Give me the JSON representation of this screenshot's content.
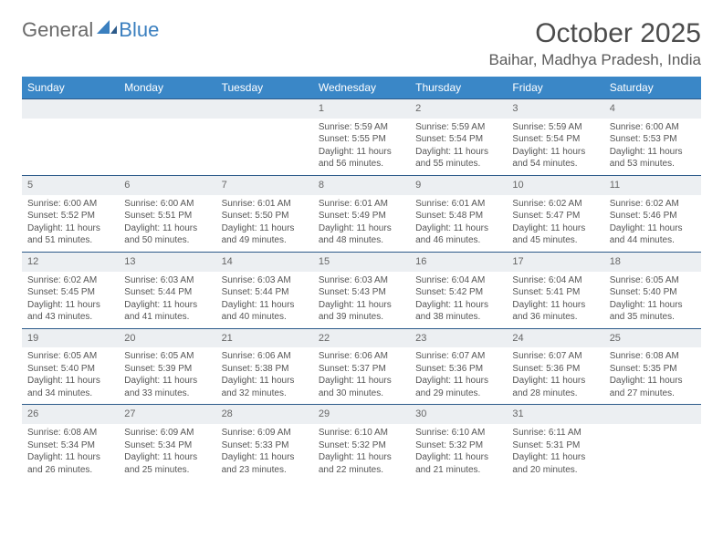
{
  "logo": {
    "general": "General",
    "blue": "Blue"
  },
  "title": "October 2025",
  "location": "Baihar, Madhya Pradesh, India",
  "colors": {
    "header_bg": "#3a87c7",
    "header_text": "#ffffff",
    "daynum_bg": "#eceff2",
    "row_border": "#2c5a8a",
    "text": "#555555",
    "logo_blue": "#3a7fbf"
  },
  "weekdays": [
    "Sunday",
    "Monday",
    "Tuesday",
    "Wednesday",
    "Thursday",
    "Friday",
    "Saturday"
  ],
  "weeks": [
    [
      {
        "n": "",
        "sr": "",
        "ss": "",
        "dl": ""
      },
      {
        "n": "",
        "sr": "",
        "ss": "",
        "dl": ""
      },
      {
        "n": "",
        "sr": "",
        "ss": "",
        "dl": ""
      },
      {
        "n": "1",
        "sr": "Sunrise: 5:59 AM",
        "ss": "Sunset: 5:55 PM",
        "dl": "Daylight: 11 hours and 56 minutes."
      },
      {
        "n": "2",
        "sr": "Sunrise: 5:59 AM",
        "ss": "Sunset: 5:54 PM",
        "dl": "Daylight: 11 hours and 55 minutes."
      },
      {
        "n": "3",
        "sr": "Sunrise: 5:59 AM",
        "ss": "Sunset: 5:54 PM",
        "dl": "Daylight: 11 hours and 54 minutes."
      },
      {
        "n": "4",
        "sr": "Sunrise: 6:00 AM",
        "ss": "Sunset: 5:53 PM",
        "dl": "Daylight: 11 hours and 53 minutes."
      }
    ],
    [
      {
        "n": "5",
        "sr": "Sunrise: 6:00 AM",
        "ss": "Sunset: 5:52 PM",
        "dl": "Daylight: 11 hours and 51 minutes."
      },
      {
        "n": "6",
        "sr": "Sunrise: 6:00 AM",
        "ss": "Sunset: 5:51 PM",
        "dl": "Daylight: 11 hours and 50 minutes."
      },
      {
        "n": "7",
        "sr": "Sunrise: 6:01 AM",
        "ss": "Sunset: 5:50 PM",
        "dl": "Daylight: 11 hours and 49 minutes."
      },
      {
        "n": "8",
        "sr": "Sunrise: 6:01 AM",
        "ss": "Sunset: 5:49 PM",
        "dl": "Daylight: 11 hours and 48 minutes."
      },
      {
        "n": "9",
        "sr": "Sunrise: 6:01 AM",
        "ss": "Sunset: 5:48 PM",
        "dl": "Daylight: 11 hours and 46 minutes."
      },
      {
        "n": "10",
        "sr": "Sunrise: 6:02 AM",
        "ss": "Sunset: 5:47 PM",
        "dl": "Daylight: 11 hours and 45 minutes."
      },
      {
        "n": "11",
        "sr": "Sunrise: 6:02 AM",
        "ss": "Sunset: 5:46 PM",
        "dl": "Daylight: 11 hours and 44 minutes."
      }
    ],
    [
      {
        "n": "12",
        "sr": "Sunrise: 6:02 AM",
        "ss": "Sunset: 5:45 PM",
        "dl": "Daylight: 11 hours and 43 minutes."
      },
      {
        "n": "13",
        "sr": "Sunrise: 6:03 AM",
        "ss": "Sunset: 5:44 PM",
        "dl": "Daylight: 11 hours and 41 minutes."
      },
      {
        "n": "14",
        "sr": "Sunrise: 6:03 AM",
        "ss": "Sunset: 5:44 PM",
        "dl": "Daylight: 11 hours and 40 minutes."
      },
      {
        "n": "15",
        "sr": "Sunrise: 6:03 AM",
        "ss": "Sunset: 5:43 PM",
        "dl": "Daylight: 11 hours and 39 minutes."
      },
      {
        "n": "16",
        "sr": "Sunrise: 6:04 AM",
        "ss": "Sunset: 5:42 PM",
        "dl": "Daylight: 11 hours and 38 minutes."
      },
      {
        "n": "17",
        "sr": "Sunrise: 6:04 AM",
        "ss": "Sunset: 5:41 PM",
        "dl": "Daylight: 11 hours and 36 minutes."
      },
      {
        "n": "18",
        "sr": "Sunrise: 6:05 AM",
        "ss": "Sunset: 5:40 PM",
        "dl": "Daylight: 11 hours and 35 minutes."
      }
    ],
    [
      {
        "n": "19",
        "sr": "Sunrise: 6:05 AM",
        "ss": "Sunset: 5:40 PM",
        "dl": "Daylight: 11 hours and 34 minutes."
      },
      {
        "n": "20",
        "sr": "Sunrise: 6:05 AM",
        "ss": "Sunset: 5:39 PM",
        "dl": "Daylight: 11 hours and 33 minutes."
      },
      {
        "n": "21",
        "sr": "Sunrise: 6:06 AM",
        "ss": "Sunset: 5:38 PM",
        "dl": "Daylight: 11 hours and 32 minutes."
      },
      {
        "n": "22",
        "sr": "Sunrise: 6:06 AM",
        "ss": "Sunset: 5:37 PM",
        "dl": "Daylight: 11 hours and 30 minutes."
      },
      {
        "n": "23",
        "sr": "Sunrise: 6:07 AM",
        "ss": "Sunset: 5:36 PM",
        "dl": "Daylight: 11 hours and 29 minutes."
      },
      {
        "n": "24",
        "sr": "Sunrise: 6:07 AM",
        "ss": "Sunset: 5:36 PM",
        "dl": "Daylight: 11 hours and 28 minutes."
      },
      {
        "n": "25",
        "sr": "Sunrise: 6:08 AM",
        "ss": "Sunset: 5:35 PM",
        "dl": "Daylight: 11 hours and 27 minutes."
      }
    ],
    [
      {
        "n": "26",
        "sr": "Sunrise: 6:08 AM",
        "ss": "Sunset: 5:34 PM",
        "dl": "Daylight: 11 hours and 26 minutes."
      },
      {
        "n": "27",
        "sr": "Sunrise: 6:09 AM",
        "ss": "Sunset: 5:34 PM",
        "dl": "Daylight: 11 hours and 25 minutes."
      },
      {
        "n": "28",
        "sr": "Sunrise: 6:09 AM",
        "ss": "Sunset: 5:33 PM",
        "dl": "Daylight: 11 hours and 23 minutes."
      },
      {
        "n": "29",
        "sr": "Sunrise: 6:10 AM",
        "ss": "Sunset: 5:32 PM",
        "dl": "Daylight: 11 hours and 22 minutes."
      },
      {
        "n": "30",
        "sr": "Sunrise: 6:10 AM",
        "ss": "Sunset: 5:32 PM",
        "dl": "Daylight: 11 hours and 21 minutes."
      },
      {
        "n": "31",
        "sr": "Sunrise: 6:11 AM",
        "ss": "Sunset: 5:31 PM",
        "dl": "Daylight: 11 hours and 20 minutes."
      },
      {
        "n": "",
        "sr": "",
        "ss": "",
        "dl": ""
      }
    ]
  ]
}
